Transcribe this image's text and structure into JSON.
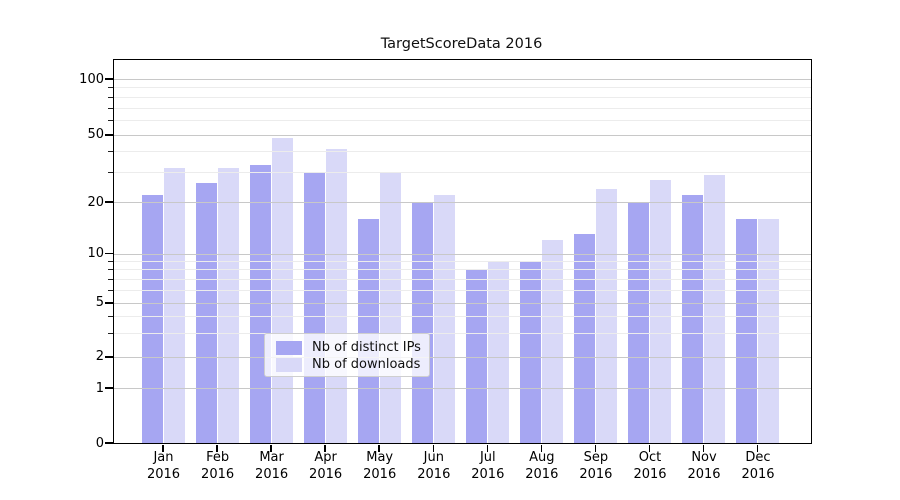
{
  "title": "TargetScoreData 2016",
  "colors": {
    "background": "#ffffff",
    "axis_spine": "#000000",
    "grid_major": "#c8c8c8",
    "grid_minor": "#ececec",
    "bar_distinct_ips": "#a6a6f2",
    "bar_downloads": "#d9d9f8",
    "bar_distinct_ips_rgba": "rgba(78,78,229,0.5)",
    "bar_downloads_rgba": "rgba(179,179,241,0.5)",
    "text": "#111111"
  },
  "legend": {
    "items": [
      {
        "label": "Nb of distinct IPs",
        "color": "#a6a6f2"
      },
      {
        "label": "Nb of downloads",
        "color": "#d9d9f8"
      }
    ],
    "position": "inside-bottom-center"
  },
  "chart_data": {
    "type": "bar",
    "title": "TargetScoreData 2016",
    "categories": [
      "Jan 2016",
      "Feb 2016",
      "Mar 2016",
      "Apr 2016",
      "May 2016",
      "Jun 2016",
      "Jul 2016",
      "Aug 2016",
      "Sep 2016",
      "Oct 2016",
      "Nov 2016",
      "Dec 2016"
    ],
    "months": [
      "Jan",
      "Feb",
      "Mar",
      "Apr",
      "May",
      "Jun",
      "Jul",
      "Aug",
      "Sep",
      "Oct",
      "Nov",
      "Dec"
    ],
    "year": "2016",
    "series": [
      {
        "name": "Nb of distinct IPs",
        "color": "#a6a6f2",
        "values": [
          22,
          26,
          33,
          30,
          16,
          20,
          8,
          9,
          13,
          20,
          22,
          16
        ]
      },
      {
        "name": "Nb of downloads",
        "color": "#d9d9f8",
        "values": [
          32,
          32,
          48,
          41,
          30,
          22,
          9,
          12,
          24,
          27,
          29,
          16
        ]
      }
    ],
    "xlabel": "",
    "ylabel": "",
    "grid": "horizontal, major and minor",
    "legend_position": "inside bottom center",
    "y_axis": {
      "scale": "nonlinear log-like with 0 baseline",
      "ticks": [
        0,
        1,
        2,
        5,
        10,
        20,
        50,
        100
      ],
      "minor_ticks": [
        3,
        4,
        6,
        7,
        8,
        9,
        30,
        40,
        60,
        70,
        80,
        90
      ],
      "anchors": [
        [
          0,
          0.0
        ],
        [
          1,
          0.1432
        ],
        [
          2,
          0.2253
        ],
        [
          5,
          0.3659
        ],
        [
          10,
          0.4948
        ],
        [
          20,
          0.6289
        ],
        [
          50,
          0.8047
        ],
        [
          100,
          0.9505
        ]
      ]
    }
  }
}
